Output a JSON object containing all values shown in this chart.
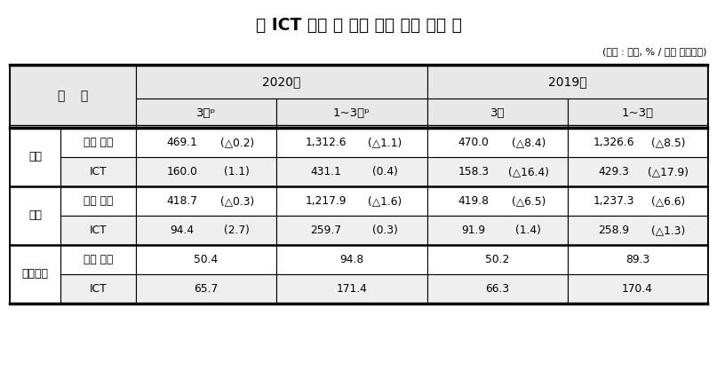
{
  "title": "《 ICT 산업 및 전체 산업 수입 동향 》",
  "subtitle": "(단위 : 억불, % / 전년 동월대비)",
  "year2020": "2020년",
  "year2019": "2019년",
  "col1": "3월ᵖ",
  "col2": "1~3월ᵖ",
  "col3": "3월",
  "col4": "1~3월",
  "group_col": "구    분",
  "groups": [
    "수출",
    "수입",
    "무역수지"
  ],
  "subrows": [
    "전체 산업",
    "ICT"
  ],
  "rows": [
    {
      "일반": "전체 산업",
      "v1": "469.1",
      "p1": "(△0.2)",
      "v2": "1,312.6",
      "p2": "(△1.1)",
      "v3": "470.0",
      "p3": "(△8.4)",
      "v4": "1,326.6",
      "p4": "(△8.5)",
      "ict": false
    },
    {
      "일반": "ICT",
      "v1": "160.0",
      "p1": "(1.1)",
      "v2": "431.1",
      "p2": "(0.4)",
      "v3": "158.3",
      "p3": "(△16.4)",
      "v4": "429.3",
      "p4": "(△17.9)",
      "ict": true
    },
    {
      "일반": "전체 산업",
      "v1": "418.7",
      "p1": "(△0.3)",
      "v2": "1,217.9",
      "p2": "(△1.6)",
      "v3": "419.8",
      "p3": "(△6.5)",
      "v4": "1,237.3",
      "p4": "(△6.6)",
      "ict": false
    },
    {
      "일반": "ICT",
      "v1": "94.4",
      "p1": "(2.7)",
      "v2": "259.7",
      "p2": "(0.3)",
      "v3": "91.9",
      "p3": "(1.4)",
      "v4": "258.9",
      "p4": "(△1.3)",
      "ict": true
    },
    {
      "일반": "전체 산업",
      "v1": "50.4",
      "p1": "",
      "v2": "94.8",
      "p2": "",
      "v3": "50.2",
      "p3": "",
      "v4": "89.3",
      "p4": "",
      "ict": false
    },
    {
      "일반": "ICT",
      "v1": "65.7",
      "p1": "",
      "v2": "171.4",
      "p2": "",
      "v3": "66.3",
      "p3": "",
      "v4": "170.4",
      "p4": "",
      "ict": true
    }
  ],
  "colors": {
    "header_bg": "#e8e8e8",
    "ict_bg": "#efefef",
    "white": "#ffffff",
    "border_dark": "#000000",
    "border_light": "#888888"
  }
}
